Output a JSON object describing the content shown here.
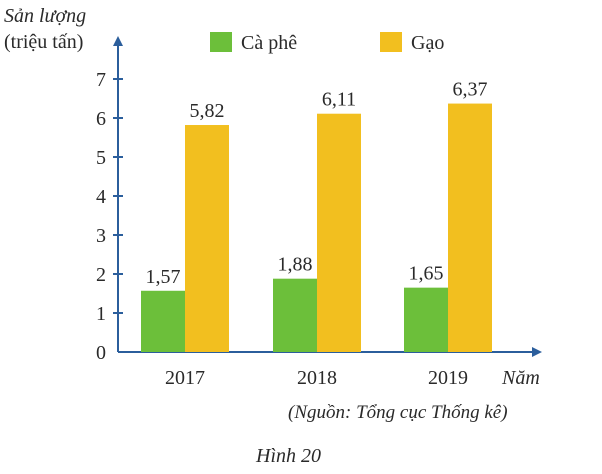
{
  "chart_data": {
    "type": "bar",
    "ylabel_line1": "Sản lượng",
    "ylabel_line2": "(triệu tấn)",
    "xlabel": "Năm",
    "categories": [
      "2017",
      "2018",
      "2019"
    ],
    "y_ticks": [
      "0",
      "1",
      "2",
      "3",
      "4",
      "5",
      "6",
      "7"
    ],
    "ylim": [
      0,
      7.8
    ],
    "series": [
      {
        "name": "Cà phê",
        "color": "#6cbf3a",
        "values": [
          1.57,
          1.88,
          1.65
        ],
        "labels": [
          "1,57",
          "1,88",
          "1,65"
        ]
      },
      {
        "name": "Gạo",
        "color": "#f2bf1f",
        "values": [
          5.82,
          6.11,
          6.37
        ],
        "labels": [
          "5,82",
          "6,11",
          "6,37"
        ]
      }
    ],
    "axis_color": "#2b5e9c",
    "legend_position": "top"
  },
  "source": "(Nguồn: Tổng cục Thống kê)",
  "caption": "Hình 20"
}
